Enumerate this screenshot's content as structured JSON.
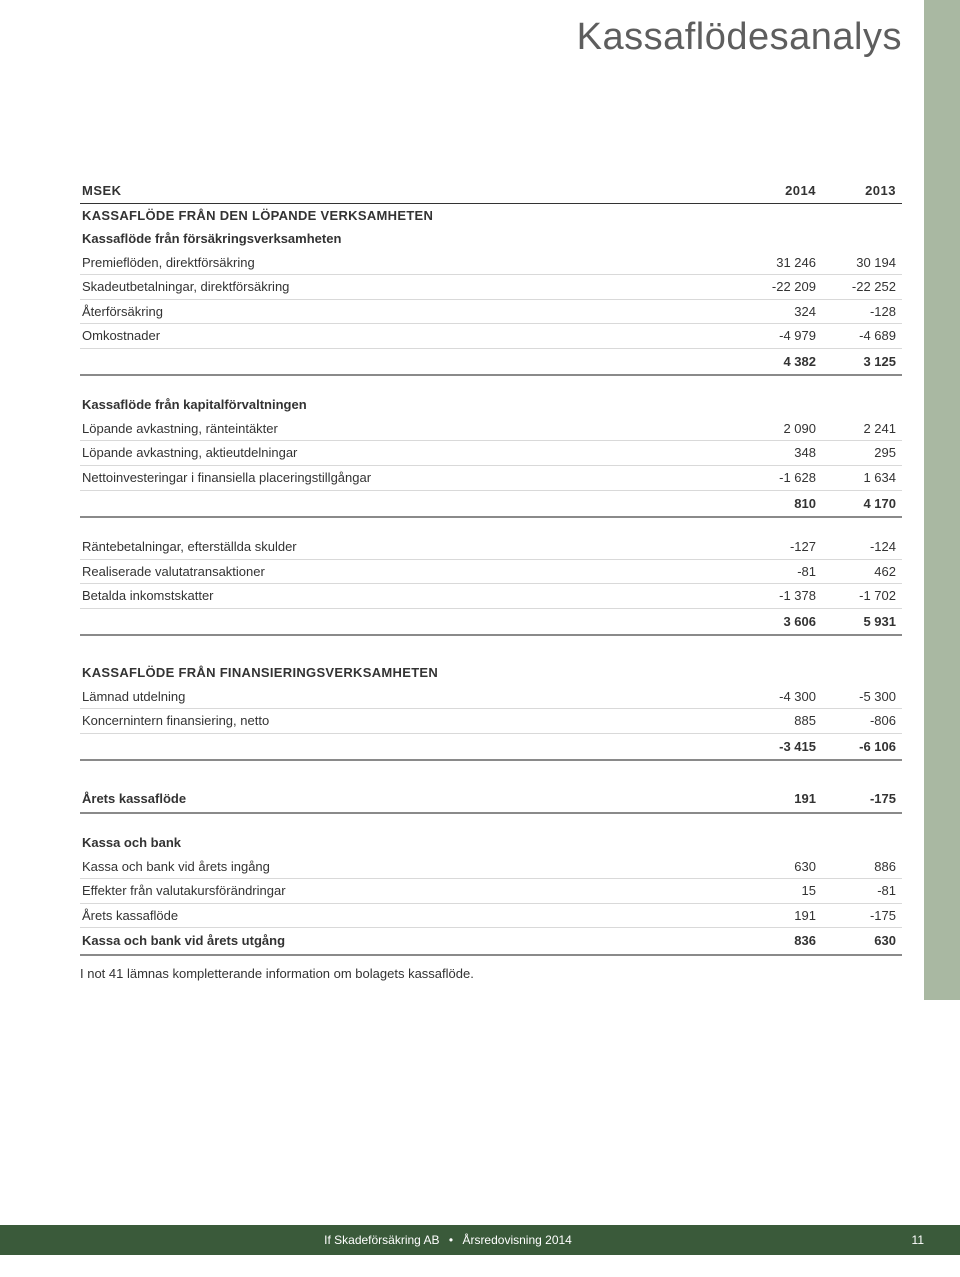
{
  "title": "Kassaflödesanalys",
  "colors": {
    "side_band": "#a9b8a2",
    "footer_bg": "#3a5a3a",
    "text": "#333333",
    "title_text": "#5e5e5e",
    "row_border": "#d9d9d9",
    "total_border": "#8a8a8a"
  },
  "table": {
    "header": {
      "c0": "MSEK",
      "c1": "2014",
      "c2": "2013"
    },
    "section1": {
      "title": "KASSAFLÖDE FRÅN DEN LÖPANDE VERKSAMHETEN",
      "sub1": "Kassaflöde från försäkringsverksamheten",
      "r1": {
        "l": "Premieflöden, direktförsäkring",
        "a": "31 246",
        "b": "30 194"
      },
      "r2": {
        "l": "Skadeutbetalningar, direktförsäkring",
        "a": "-22 209",
        "b": "-22 252"
      },
      "r3": {
        "l": "Återförsäkring",
        "a": "324",
        "b": "-128"
      },
      "r4": {
        "l": "Omkostnader",
        "a": "-4 979",
        "b": "-4 689"
      },
      "t1": {
        "a": "4 382",
        "b": "3 125"
      },
      "sub2": "Kassaflöde från kapitalförvaltningen",
      "r5": {
        "l": "Löpande avkastning, ränteintäkter",
        "a": "2 090",
        "b": "2 241"
      },
      "r6": {
        "l": "Löpande avkastning, aktieutdelningar",
        "a": "348",
        "b": "295"
      },
      "r7": {
        "l": "Nettoinvesteringar i finansiella placeringstillgångar",
        "a": "-1 628",
        "b": "1 634"
      },
      "t2": {
        "a": "810",
        "b": "4 170"
      },
      "r8": {
        "l": "Räntebetalningar, efterställda skulder",
        "a": "-127",
        "b": "-124"
      },
      "r9": {
        "l": "Realiserade valutatransaktioner",
        "a": "-81",
        "b": "462"
      },
      "r10": {
        "l": "Betalda inkomstskatter",
        "a": "-1 378",
        "b": "-1 702"
      },
      "t3": {
        "a": "3 606",
        "b": "5 931"
      }
    },
    "section2": {
      "title": "KASSAFLÖDE FRÅN FINANSIERINGSVERKSAMHETEN",
      "r1": {
        "l": "Lämnad utdelning",
        "a": "-4 300",
        "b": "-5 300"
      },
      "r2": {
        "l": "Koncernintern finansiering, netto",
        "a": "885",
        "b": "-806"
      },
      "t1": {
        "a": "-3 415",
        "b": "-6 106"
      }
    },
    "section3": {
      "r1": {
        "l": "Årets kassaflöde",
        "a": "191",
        "b": "-175"
      }
    },
    "section4": {
      "title": "Kassa och bank",
      "r1": {
        "l": "Kassa och bank vid årets ingång",
        "a": "630",
        "b": "886"
      },
      "r2": {
        "l": "Effekter från valutakursförändringar",
        "a": "15",
        "b": "-81"
      },
      "r3": {
        "l": "Årets kassaflöde",
        "a": "191",
        "b": "-175"
      },
      "r4": {
        "l": "Kassa och bank vid årets utgång",
        "a": "836",
        "b": "630"
      }
    }
  },
  "footnote": "I not 41 lämnas kompletterande information om bolagets kassaflöde.",
  "footer": {
    "company": "If Skadeförsäkring AB",
    "separator": "•",
    "doc": "Årsredovisning 2014",
    "page": "11"
  }
}
